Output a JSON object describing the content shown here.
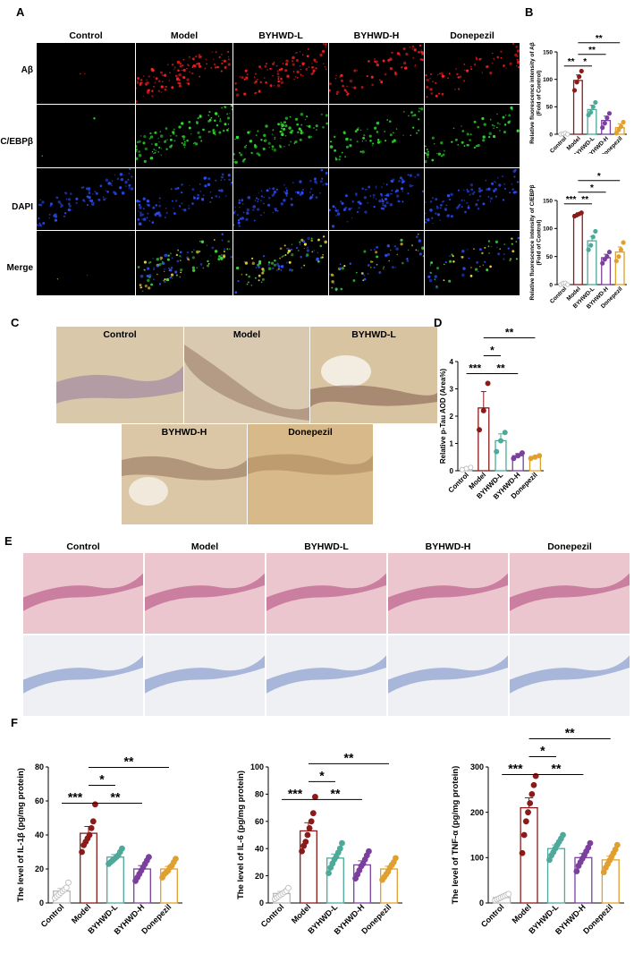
{
  "panel_labels": {
    "a": "A",
    "b": "B",
    "c": "C",
    "d": "D",
    "e": "E",
    "f": "F"
  },
  "groups": [
    "Control",
    "Model",
    "BYHWD-L",
    "BYHWD-H",
    "Donepezil"
  ],
  "colors": {
    "control": "#b8b8b8",
    "model": "#8b1a1a",
    "byhwd_l": "#4ea99a",
    "byhwd_h": "#7b3f9e",
    "donepezil": "#e0a030"
  },
  "panel_a": {
    "row_labels": [
      "Aβ",
      "C/EBPβ",
      "DAPI",
      "Merge"
    ]
  },
  "panel_c": {
    "labels": [
      "Control",
      "Model",
      "BYHWD-L",
      "BYHWD-H",
      "Donepezil"
    ]
  },
  "panel_e": {
    "labels": [
      "Control",
      "Model",
      "BYHWD-L",
      "BYHWD-H",
      "Donepezil"
    ]
  },
  "chart_data": [
    {
      "id": "B-abeta",
      "type": "bar",
      "ylabel": "Relative fluorescence intensity of Aβ",
      "ylabel2": "(Fold of Control)",
      "ylim": [
        0,
        150
      ],
      "yticks": [
        "0",
        "50",
        "100",
        "150"
      ],
      "categories": [
        "Control",
        "Model",
        "BYHWD-L",
        "BYHWD-H",
        "Donepezil"
      ],
      "values": [
        1,
        98,
        45,
        25,
        12
      ],
      "errors": [
        1,
        10,
        8,
        8,
        7
      ],
      "points": [
        [
          0,
          1,
          2,
          0
        ],
        [
          80,
          95,
          105,
          115
        ],
        [
          35,
          40,
          50,
          58
        ],
        [
          12,
          20,
          30,
          38
        ],
        [
          2,
          8,
          14,
          22
        ]
      ],
      "significance": [
        {
          "from": 0,
          "to": 1,
          "label": "**",
          "level": 0
        },
        {
          "from": 1,
          "to": 2,
          "label": "*",
          "level": 0
        },
        {
          "from": 1,
          "to": 3,
          "label": "**",
          "level": 1
        },
        {
          "from": 1,
          "to": 4,
          "label": "**",
          "level": 2
        }
      ]
    },
    {
      "id": "B-cebpb",
      "type": "bar",
      "ylabel": "Relative fluorescence intensity of C/EBPβ",
      "ylabel2": "(Fold of Control)",
      "ylim": [
        0,
        150
      ],
      "yticks": [
        "0",
        "50",
        "100",
        "150"
      ],
      "categories": [
        "Control",
        "Model",
        "BYHWD-L",
        "BYHWD-H",
        "Donepezil"
      ],
      "values": [
        1,
        125,
        78,
        48,
        58
      ],
      "errors": [
        1,
        3,
        8,
        6,
        9
      ],
      "points": [
        [
          0,
          2,
          3,
          0
        ],
        [
          122,
          124,
          126,
          128
        ],
        [
          62,
          70,
          85,
          95
        ],
        [
          38,
          45,
          50,
          58
        ],
        [
          42,
          50,
          62,
          75
        ]
      ],
      "significance": [
        {
          "from": 0,
          "to": 1,
          "label": "***",
          "level": 0
        },
        {
          "from": 1,
          "to": 2,
          "label": "**",
          "level": 0
        },
        {
          "from": 1,
          "to": 3,
          "label": "*",
          "level": 1
        },
        {
          "from": 1,
          "to": 4,
          "label": "*",
          "level": 2
        }
      ]
    },
    {
      "id": "D-ptau",
      "type": "bar",
      "ylabel": "Relative p-Tau AOD (Area%)",
      "ylabel2": "",
      "ylim": [
        0,
        4
      ],
      "yticks": [
        "0",
        "1",
        "2",
        "3",
        "4"
      ],
      "categories": [
        "Control",
        "Model",
        "BYHWD-L",
        "BYHWD-H",
        "Donepezil"
      ],
      "values": [
        0.08,
        2.3,
        1.1,
        0.55,
        0.5
      ],
      "errors": [
        0.05,
        0.6,
        0.25,
        0.08,
        0.05
      ],
      "points": [
        [
          0.04,
          0.08,
          0.12
        ],
        [
          1.5,
          2.2,
          3.2
        ],
        [
          0.7,
          1.1,
          1.4
        ],
        [
          0.45,
          0.55,
          0.65
        ],
        [
          0.45,
          0.5,
          0.55
        ]
      ],
      "significance": [
        {
          "from": 0,
          "to": 1,
          "label": "***",
          "level": 0
        },
        {
          "from": 1,
          "to": 3,
          "label": "**",
          "level": 0
        },
        {
          "from": 1,
          "to": 2,
          "label": "*",
          "level": 1
        },
        {
          "from": 1,
          "to": 4,
          "label": "**",
          "level": 2
        }
      ]
    },
    {
      "id": "F-il1b",
      "type": "bar",
      "ylabel": "The level of IL-1β (pg/mg protein)",
      "ylabel2": "",
      "ylim": [
        0,
        80
      ],
      "yticks": [
        "0",
        "20",
        "40",
        "60",
        "80"
      ],
      "categories": [
        "Control",
        "Model",
        "BYHWD-L",
        "BYHWD-H",
        "Donepezil"
      ],
      "values": [
        7,
        41,
        27,
        20,
        20
      ],
      "errors": [
        1.5,
        4,
        1.5,
        2,
        1.5
      ],
      "points": [
        [
          3,
          4,
          5,
          6,
          7,
          8,
          9,
          12
        ],
        [
          30,
          34,
          36,
          38,
          40,
          44,
          48,
          58
        ],
        [
          23,
          24,
          25,
          26,
          27,
          28,
          30,
          32
        ],
        [
          13,
          15,
          17,
          19,
          21,
          23,
          25,
          27
        ],
        [
          15,
          17,
          18,
          19,
          21,
          22,
          24,
          26
        ]
      ],
      "significance": [
        {
          "from": 0,
          "to": 1,
          "label": "***",
          "level": 0
        },
        {
          "from": 1,
          "to": 3,
          "label": "**",
          "level": 0
        },
        {
          "from": 1,
          "to": 2,
          "label": "*",
          "level": 1
        },
        {
          "from": 1,
          "to": 4,
          "label": "**",
          "level": 2
        }
      ]
    },
    {
      "id": "F-il6",
      "type": "bar",
      "ylabel": "The level of IL-6 (pg/mg protein)",
      "ylabel2": "",
      "ylim": [
        0,
        100
      ],
      "yticks": [
        "0",
        "20",
        "40",
        "60",
        "80",
        "100"
      ],
      "categories": [
        "Control",
        "Model",
        "BYHWD-L",
        "BYHWD-H",
        "Donepezil"
      ],
      "values": [
        7,
        53,
        33,
        28,
        25
      ],
      "errors": [
        1.5,
        6,
        3,
        3,
        2
      ],
      "points": [
        [
          3,
          4,
          5,
          6,
          7,
          8,
          9,
          11
        ],
        [
          38,
          42,
          45,
          50,
          55,
          60,
          66,
          78
        ],
        [
          22,
          26,
          29,
          32,
          34,
          37,
          40,
          44
        ],
        [
          18,
          21,
          24,
          27,
          29,
          32,
          35,
          38
        ],
        [
          17,
          19,
          21,
          23,
          26,
          28,
          30,
          33
        ]
      ],
      "significance": [
        {
          "from": 0,
          "to": 1,
          "label": "***",
          "level": 0
        },
        {
          "from": 1,
          "to": 3,
          "label": "**",
          "level": 0
        },
        {
          "from": 1,
          "to": 2,
          "label": "*",
          "level": 1
        },
        {
          "from": 1,
          "to": 4,
          "label": "**",
          "level": 2
        }
      ]
    },
    {
      "id": "F-tnfa",
      "type": "bar",
      "ylabel": "The level of TNF-α (pg/mg protein)",
      "ylabel2": "",
      "ylim": [
        0,
        300
      ],
      "yticks": [
        "0",
        "100",
        "200",
        "300"
      ],
      "categories": [
        "Control",
        "Model",
        "BYHWD-L",
        "BYHWD-H",
        "Donepezil"
      ],
      "values": [
        12,
        210,
        120,
        100,
        95
      ],
      "errors": [
        2,
        22,
        8,
        9,
        8
      ],
      "points": [
        [
          6,
          8,
          10,
          12,
          14,
          16,
          18,
          20
        ],
        [
          110,
          150,
          180,
          200,
          220,
          240,
          260,
          280
        ],
        [
          95,
          105,
          112,
          120,
          128,
          135,
          142,
          150
        ],
        [
          70,
          82,
          90,
          98,
          106,
          114,
          122,
          132
        ],
        [
          68,
          78,
          86,
          94,
          102,
          110,
          118,
          128
        ]
      ],
      "significance": [
        {
          "from": 0,
          "to": 1,
          "label": "***",
          "level": 0
        },
        {
          "from": 1,
          "to": 3,
          "label": "**",
          "level": 0
        },
        {
          "from": 1,
          "to": 2,
          "label": "*",
          "level": 1
        },
        {
          "from": 1,
          "to": 4,
          "label": "**",
          "level": 2
        }
      ]
    }
  ]
}
